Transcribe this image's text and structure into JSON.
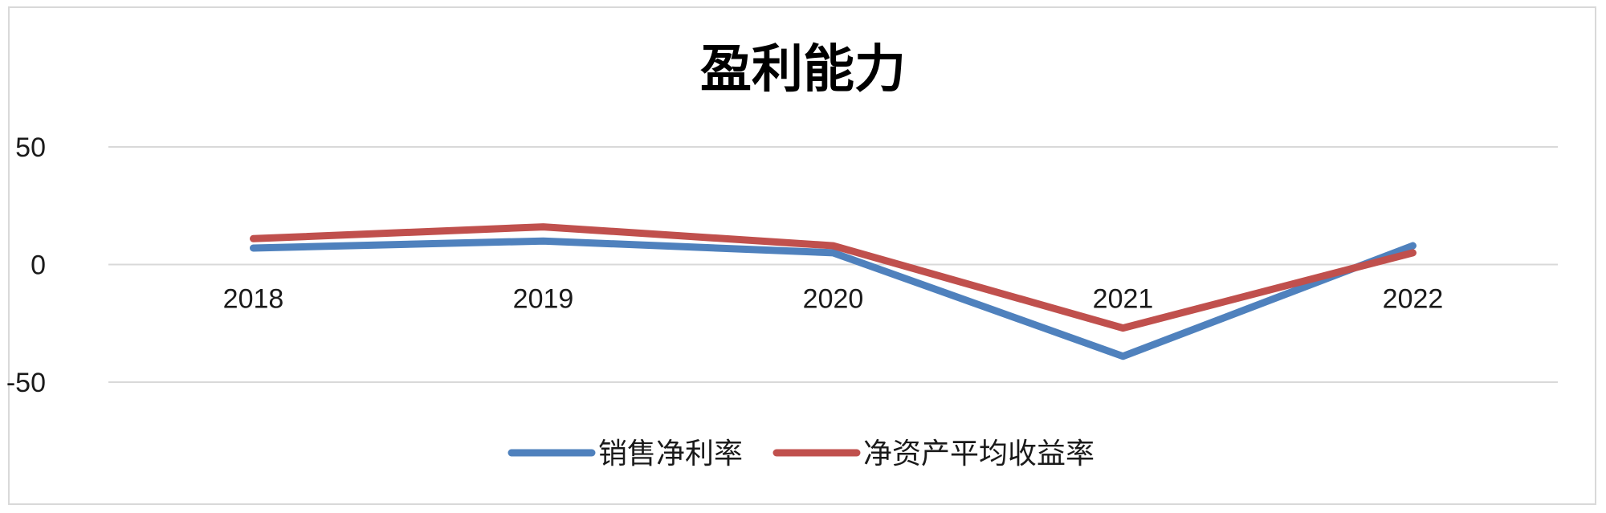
{
  "chart_data": {
    "type": "line",
    "title": "盈利能力",
    "categories": [
      "2018",
      "2019",
      "2020",
      "2021",
      "2022"
    ],
    "ylim": [
      -50,
      50
    ],
    "y_ticks": [
      50,
      0,
      -50
    ],
    "y_tick_labels": [
      "50",
      "0",
      "-50"
    ],
    "grid": true,
    "legend_position": "bottom",
    "series": [
      {
        "name": "销售净利率",
        "color": "#4f81bd",
        "values": [
          7,
          10,
          5,
          -39,
          8
        ]
      },
      {
        "name": "净资产平均收益率",
        "color": "#c0504d",
        "values": [
          11,
          16,
          8,
          -27,
          5
        ]
      }
    ]
  }
}
